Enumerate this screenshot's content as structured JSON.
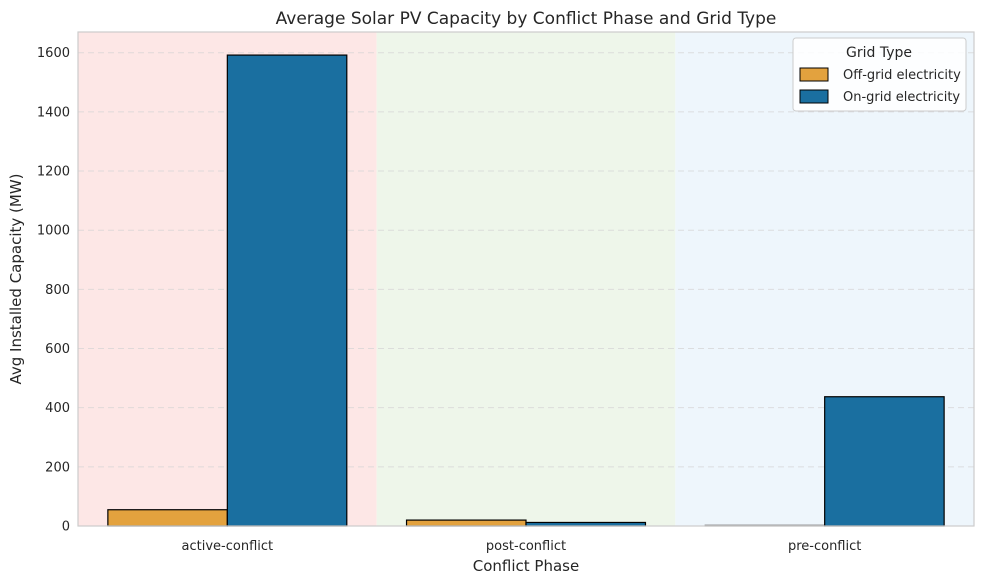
{
  "chart_data": {
    "type": "bar",
    "title": "Average Solar PV Capacity by Conflict Phase and Grid Type",
    "xlabel": "Conflict Phase",
    "ylabel": "Avg Installed Capacity (MW)",
    "categories": [
      "active-conflict",
      "post-conflict",
      "pre-conflict"
    ],
    "series": [
      {
        "name": "Off-grid electricity",
        "values": [
          55,
          20,
          3
        ],
        "color": "#e3a23e"
      },
      {
        "name": "On-grid electricity",
        "values": [
          1592,
          12,
          437
        ],
        "color": "#1a6fa0"
      }
    ],
    "ylim": [
      0,
      1670
    ],
    "yticks": [
      0,
      200,
      400,
      600,
      800,
      1000,
      1200,
      1400,
      1600
    ],
    "grid": true,
    "legend": {
      "title": "Grid Type",
      "position": "top-right"
    },
    "background_bands": [
      "#fde7e6",
      "#eef6ea",
      "#eef6fc"
    ]
  }
}
